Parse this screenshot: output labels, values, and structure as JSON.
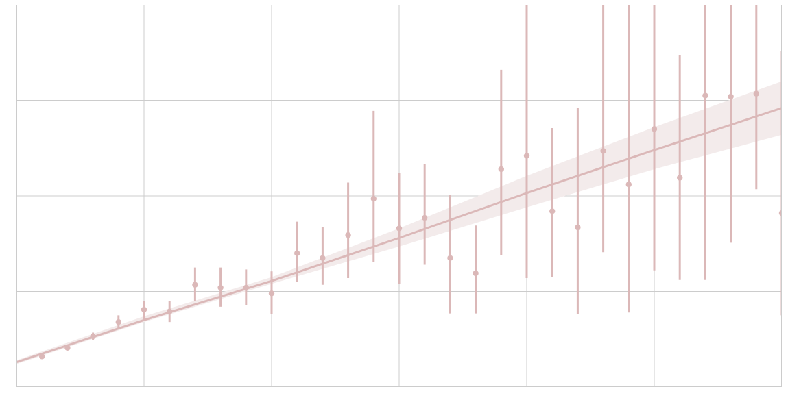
{
  "chart_data": {
    "type": "scatter",
    "title": "",
    "xlabel": "",
    "ylabel": "",
    "xlim": [
      0,
      30
    ],
    "ylim": [
      0,
      4
    ],
    "grid": true,
    "x_gridlines": [
      5,
      10,
      15,
      20,
      25
    ],
    "y_gridlines": [
      1,
      2,
      3
    ],
    "colors": {
      "points": "#dbb8b8",
      "fit_line": "#dbb8b8",
      "band": "#f3ebeb",
      "grid": "#cccccc",
      "frame": "#cccccc"
    },
    "points": [
      {
        "x": 1,
        "y": 0.32,
        "low": 0.31,
        "high": 0.33
      },
      {
        "x": 2,
        "y": 0.41,
        "low": 0.4,
        "high": 0.42
      },
      {
        "x": 3,
        "y": 0.53,
        "low": 0.49,
        "high": 0.57
      },
      {
        "x": 4,
        "y": 0.68,
        "low": 0.62,
        "high": 0.75
      },
      {
        "x": 5,
        "y": 0.81,
        "low": 0.7,
        "high": 0.9
      },
      {
        "x": 6,
        "y": 0.79,
        "low": 0.68,
        "high": 0.9
      },
      {
        "x": 7,
        "y": 1.07,
        "low": 0.9,
        "high": 1.25
      },
      {
        "x": 8,
        "y": 1.04,
        "low": 0.84,
        "high": 1.25
      },
      {
        "x": 9,
        "y": 1.04,
        "low": 0.86,
        "high": 1.23
      },
      {
        "x": 10,
        "y": 0.98,
        "low": 0.76,
        "high": 1.21
      },
      {
        "x": 11,
        "y": 1.4,
        "low": 1.1,
        "high": 1.73
      },
      {
        "x": 12,
        "y": 1.35,
        "low": 1.07,
        "high": 1.67
      },
      {
        "x": 13,
        "y": 1.59,
        "low": 1.14,
        "high": 2.14
      },
      {
        "x": 14,
        "y": 1.97,
        "low": 1.31,
        "high": 2.89
      },
      {
        "x": 15,
        "y": 1.66,
        "low": 1.08,
        "high": 2.24
      },
      {
        "x": 16,
        "y": 1.77,
        "low": 1.28,
        "high": 2.33
      },
      {
        "x": 17,
        "y": 1.35,
        "low": 0.77,
        "high": 2.01
      },
      {
        "x": 18,
        "y": 1.19,
        "low": 0.77,
        "high": 1.69
      },
      {
        "x": 19,
        "y": 2.28,
        "low": 1.38,
        "high": 3.32
      },
      {
        "x": 20,
        "y": 2.42,
        "low": 1.14,
        "high": 4.0
      },
      {
        "x": 21,
        "y": 1.84,
        "low": 1.15,
        "high": 2.71
      },
      {
        "x": 22,
        "y": 1.67,
        "low": 0.76,
        "high": 2.92
      },
      {
        "x": 23,
        "y": 2.47,
        "low": 1.41,
        "high": 4.0
      },
      {
        "x": 24,
        "y": 2.12,
        "low": 0.78,
        "high": 4.0
      },
      {
        "x": 25,
        "y": 2.7,
        "low": 1.22,
        "high": 4.0
      },
      {
        "x": 26,
        "y": 2.19,
        "low": 1.12,
        "high": 3.47
      },
      {
        "x": 27,
        "y": 3.05,
        "low": 1.12,
        "high": 4.0
      },
      {
        "x": 28,
        "y": 3.04,
        "low": 1.51,
        "high": 4.0
      },
      {
        "x": 29,
        "y": 3.07,
        "low": 2.07,
        "high": 4.0
      },
      {
        "x": 30,
        "y": 1.82,
        "low": 0.75,
        "high": 3.52
      }
    ],
    "fit": {
      "x": [
        0,
        5,
        10,
        15,
        20,
        25,
        30
      ],
      "y": [
        0.26,
        0.7,
        1.11,
        1.56,
        2.03,
        2.48,
        2.92
      ],
      "band_low": [
        0.24,
        0.68,
        1.08,
        1.47,
        1.88,
        2.28,
        2.64
      ],
      "band_high": [
        0.28,
        0.74,
        1.15,
        1.66,
        2.21,
        2.72,
        3.2
      ]
    }
  }
}
